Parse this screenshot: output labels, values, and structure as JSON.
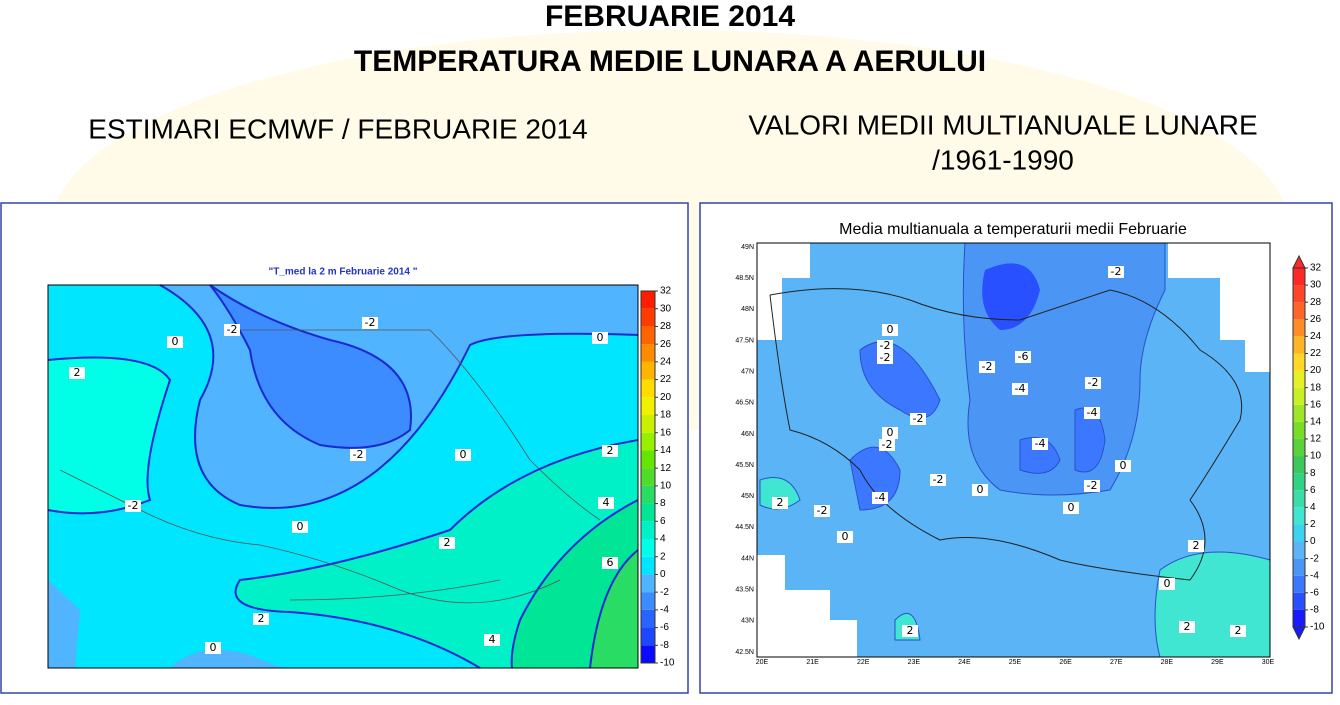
{
  "header": {
    "title": "FEBRUARIE 2014",
    "subtitle": "TEMPERATURA MEDIE LUNARA A AERULUI"
  },
  "left_heading": "ESTIMARI ECMWF / FEBRUARIE 2014",
  "right_heading": {
    "line1": "VALORI MEDII MULTIANUALE LUNARE",
    "line2": "/1961-1990"
  },
  "left_map": {
    "title": "\"T_med la 2 m Februarie 2014 \"",
    "contour_labels": [
      "0",
      "-2",
      "-2",
      "0",
      "2",
      "-2",
      "0",
      "2",
      "-2",
      "0",
      "2",
      "4",
      "6",
      "2",
      "0",
      "4"
    ],
    "colorbar": {
      "ticks": [
        -10,
        -8,
        -6,
        -4,
        -2,
        0,
        2,
        4,
        6,
        8,
        10,
        12,
        14,
        16,
        18,
        20,
        22,
        24,
        26,
        28,
        30,
        32
      ],
      "colors": [
        "#0a0aff",
        "#1e46ff",
        "#2864ff",
        "#3c8cff",
        "#50b4ff",
        "#00e6ff",
        "#00ffe6",
        "#00f0c8",
        "#00e696",
        "#28dc64",
        "#50dc28",
        "#64e600",
        "#96f000",
        "#c8f000",
        "#f0f000",
        "#ffdc00",
        "#ffb400",
        "#ff8c00",
        "#ff6400",
        "#ff3c00",
        "#ff1e00"
      ]
    }
  },
  "right_map": {
    "title": "Media multianuala a temperaturii medii Februarie",
    "lat_labels": [
      "49N",
      "48.5N",
      "48N",
      "47.5N",
      "47N",
      "46.5N",
      "46N",
      "45.5N",
      "45N",
      "44.5N",
      "44N",
      "43.5N",
      "43N",
      "42.5N"
    ],
    "lon_labels": [
      "20E",
      "21E",
      "22E",
      "23E",
      "24E",
      "25E",
      "26E",
      "27E",
      "28E",
      "29E",
      "30E"
    ],
    "contour_labels": [
      "0",
      "-2",
      "-2",
      "-2",
      "-2",
      "-6",
      "-4",
      "-2",
      "-2",
      "-4",
      "0",
      "-2",
      "-4",
      "0",
      "-2",
      "0",
      "-2",
      "-4",
      "2",
      "-2",
      "0",
      "0",
      "2",
      "0",
      "2",
      "2",
      "2"
    ],
    "colorbar": {
      "ticks": [
        -10,
        -8,
        -6,
        -4,
        -2,
        0,
        2,
        4,
        6,
        8,
        10,
        12,
        14,
        16,
        18,
        20,
        22,
        24,
        26,
        28,
        30,
        32
      ],
      "colors": [
        "#1a1aff",
        "#2850ff",
        "#3c78ff",
        "#4b96f5",
        "#5ab4f5",
        "#3cd2f0",
        "#40e6d2",
        "#3cdcaa",
        "#32d282",
        "#3cc85a",
        "#5ad23c",
        "#78dc28",
        "#a0e628",
        "#c8f028",
        "#e6f028",
        "#ffd728",
        "#ffb428",
        "#ff8c28",
        "#ff6428",
        "#ff4628",
        "#ff2828"
      ]
    }
  }
}
